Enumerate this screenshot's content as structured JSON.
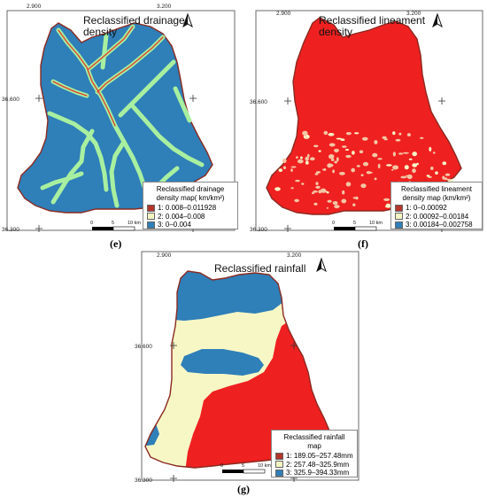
{
  "panels": {
    "e": {
      "caption": "(e)",
      "title_line1": "Reclassified drainage",
      "title_line2": "density",
      "ticks": {
        "top_left": "2.900",
        "top_right": "3.200",
        "left_mid": "36.600",
        "left_bottom": "36.300"
      },
      "legend": {
        "title_line1": "Reclassified drainage",
        "title_line2": "density map( km/km²)",
        "items": [
          {
            "label": "1: 0.008–0.011928",
            "color": "#b5352b"
          },
          {
            "label": "2: 0.004–0.008",
            "color": "#f5f5c3"
          },
          {
            "label": "3: 0–0.004",
            "color": "#2f7fb8"
          }
        ]
      },
      "scale": {
        "a": "0",
        "b": "5",
        "c": "10 km"
      }
    },
    "f": {
      "caption": "(f)",
      "title_line1": "Reclassified lineament",
      "title_line2": "density",
      "ticks": {
        "top_left": "2.900",
        "top_right": "3.200",
        "left_mid": "36.600",
        "left_bottom": "36.300"
      },
      "legend": {
        "title_line1": "Reclassified lineament",
        "title_line2": "density map (km/km²)",
        "items": [
          {
            "label": "1: 0–0.00092",
            "color": "#b5352b"
          },
          {
            "label": "2: 0.00092–0.00184",
            "color": "#f5f5c3"
          },
          {
            "label": "3: 0.00184–0.002758",
            "color": "#2f7fb8"
          }
        ]
      },
      "scale": {
        "a": "0",
        "b": "5",
        "c": "10 km"
      }
    },
    "g": {
      "caption": "(g)",
      "title_line1": "Reclassified rainfall",
      "title_line2": "",
      "ticks": {
        "top_left": "2.900",
        "top_right": "3.200",
        "left_mid": "36.600",
        "left_bottom": "36.300"
      },
      "legend": {
        "title_line1": "Reclassified rainfall",
        "title_line2": "map",
        "items": [
          {
            "label": "1: 189.05–257.48mm",
            "color": "#b5352b"
          },
          {
            "label": "2: 257.48–325.9mm",
            "color": "#f5f5c3"
          },
          {
            "label": "3: 325.9–394.33mm",
            "color": "#2f7fb8"
          }
        ]
      },
      "scale": {
        "a": "0",
        "b": "5",
        "c": "10 km"
      }
    }
  },
  "map_colors": {
    "blue": "#2f7fb8",
    "red": "#ef2020",
    "cream": "#f7f7c6",
    "green_stream": "#a8f0a0",
    "outline": "#8a2a20"
  },
  "icons": {
    "north_arrow": "north-arrow-icon"
  }
}
